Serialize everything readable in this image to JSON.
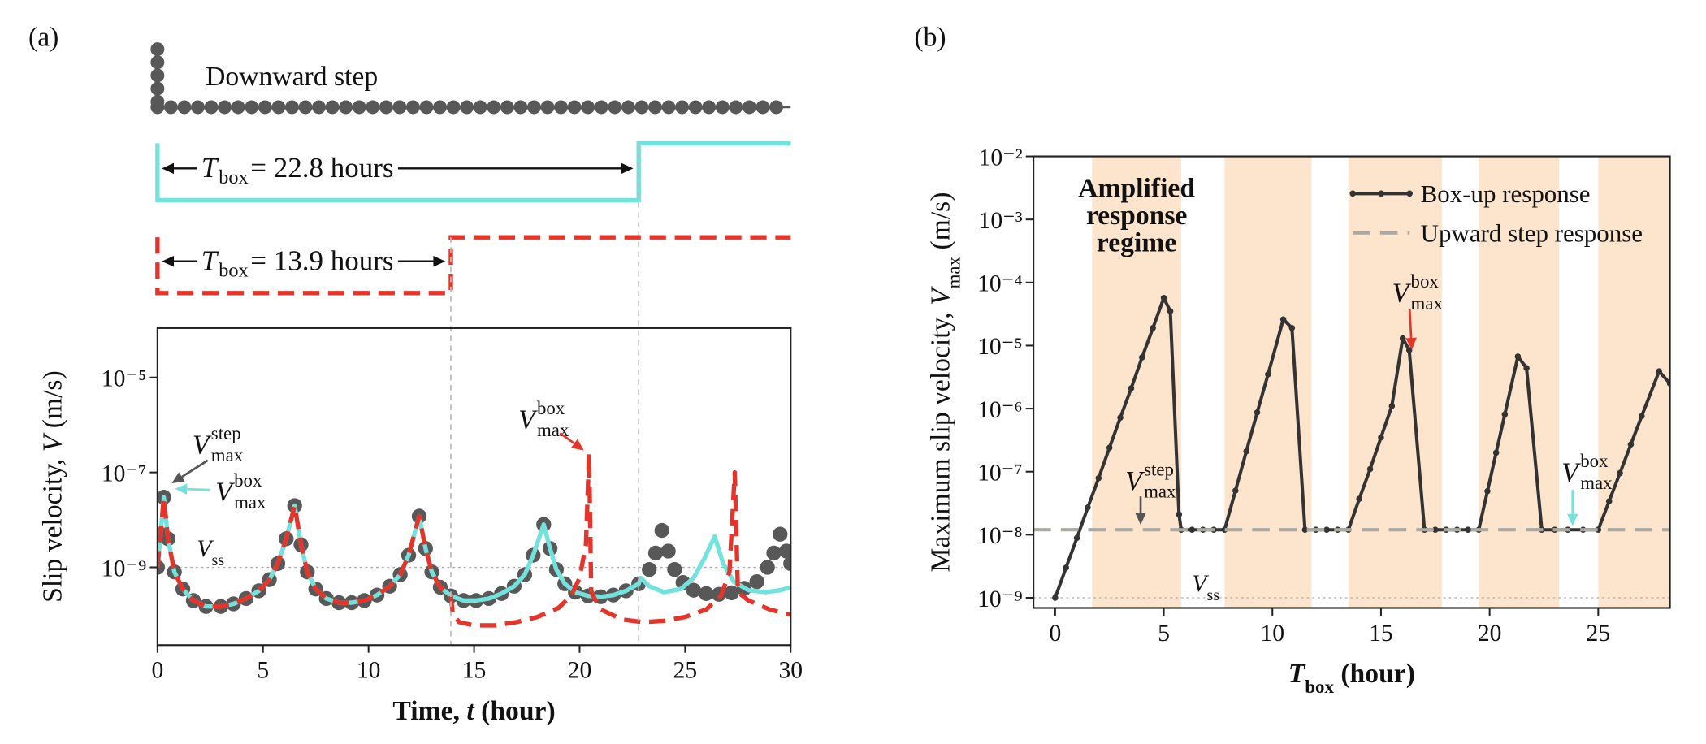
{
  "chart_data": [
    {
      "type": "line",
      "panel": "(a)",
      "xlabel": [
        "Time, ",
        "t",
        " (hour)"
      ],
      "ylabel": [
        "Slip velocity, ",
        "V",
        " (m/s)"
      ],
      "xlim": [
        0,
        30
      ],
      "xticks": [
        0,
        5,
        10,
        15,
        20,
        25,
        30
      ],
      "ylim": [
        2.3e-11,
        0.00011
      ],
      "log_y": true,
      "yticks": [
        {
          "value": 1e-09,
          "label": "10⁻⁹"
        },
        {
          "value": 1e-07,
          "label": "10⁻⁷"
        },
        {
          "value": 1e-05,
          "label": "10⁻⁵"
        }
      ],
      "reference": {
        "value": 1e-09,
        "label": [
          "V",
          "ss"
        ]
      },
      "schematic": {
        "step_label": "Downward step"
      },
      "series": [
        {
          "color": "#585858",
          "marker": "circle",
          "x": [
            0,
            0.15,
            0.3,
            0.5,
            0.8,
            1.2,
            1.7,
            2.3,
            3,
            3.6,
            4.2,
            4.8,
            5.3,
            5.7,
            6.1,
            6.5,
            6.8,
            7.1,
            7.5,
            8,
            8.6,
            9.2,
            9.8,
            10.4,
            11,
            11.5,
            11.9,
            12.4,
            12.7,
            13,
            13.4,
            13.9,
            14.5,
            15.1,
            15.7,
            16.3,
            16.9,
            17.4,
            17.8,
            18.3,
            18.6,
            18.9,
            19.3,
            19.8,
            20.4,
            21,
            21.6,
            22.2,
            22.8,
            23.3,
            23.6,
            23.9,
            24.2,
            24.5,
            24.9,
            25.4,
            26,
            26.6,
            27.2,
            27.8,
            28.4,
            28.9,
            29.2,
            29.5,
            29.8,
            30
          ],
          "values": [
            1e-09,
            5e-09,
            3e-08,
            4e-09,
            8e-10,
            3.5e-10,
            2e-10,
            1.5e-10,
            1.5e-10,
            1.7e-10,
            2.2e-10,
            3.2e-10,
            5.5e-10,
            1.2e-09,
            4e-09,
            2e-08,
            3e-09,
            8e-10,
            3.5e-10,
            2.2e-10,
            1.8e-10,
            1.8e-10,
            2e-10,
            2.6e-10,
            4e-10,
            7e-10,
            1.8e-09,
            1.2e-08,
            2.5e-09,
            8e-10,
            3.8e-10,
            2.5e-10,
            2e-10,
            2e-10,
            2.2e-10,
            2.8e-10,
            4e-10,
            7e-10,
            1.8e-09,
            8e-09,
            2.5e-09,
            9e-10,
            4.5e-10,
            3e-10,
            2.5e-10,
            2.4e-10,
            2.6e-10,
            3.2e-10,
            4.5e-10,
            9e-10,
            2e-09,
            6e-09,
            2.2e-09,
            9e-10,
            4.8e-10,
            3.3e-10,
            2.8e-10,
            2.7e-10,
            2.9e-10,
            3.6e-10,
            5e-10,
            1e-09,
            2e-09,
            5e-09,
            2.2e-09,
            1.2e-09
          ]
        },
        {
          "color": "#74e2dc",
          "line": "solid",
          "box": {
            "var": "T",
            "sub": "box",
            "value": 22.8,
            "label": "= 22.8 hours"
          },
          "x": [
            0,
            0.15,
            0.3,
            0.5,
            0.8,
            1.2,
            1.7,
            2.3,
            3,
            3.6,
            4.2,
            4.8,
            5.3,
            5.7,
            6.1,
            6.5,
            6.8,
            7.1,
            7.5,
            8,
            8.6,
            9.2,
            9.8,
            10.4,
            11,
            11.5,
            11.9,
            12.4,
            12.7,
            13,
            13.4,
            13.9,
            14.5,
            15.1,
            15.7,
            16.3,
            16.9,
            17.4,
            17.8,
            18.3,
            18.6,
            18.9,
            19.3,
            19.8,
            20.4,
            21,
            21.6,
            22.2,
            22.8,
            22.9,
            23.3,
            24,
            24.8,
            25.4,
            25.9,
            26.4,
            26.8,
            27.3,
            28,
            28.8,
            29.5,
            30
          ],
          "values": [
            1e-09,
            5e-09,
            3e-08,
            4e-09,
            8e-10,
            3.5e-10,
            2e-10,
            1.5e-10,
            1.5e-10,
            1.7e-10,
            2.2e-10,
            3.2e-10,
            5.5e-10,
            1.2e-09,
            4e-09,
            2e-08,
            3e-09,
            8e-10,
            3.5e-10,
            2.2e-10,
            1.8e-10,
            1.8e-10,
            2e-10,
            2.6e-10,
            4e-10,
            7e-10,
            1.8e-09,
            1.2e-08,
            2.5e-09,
            8e-10,
            3.8e-10,
            2.5e-10,
            2e-10,
            2e-10,
            2.2e-10,
            2.8e-10,
            4e-10,
            7e-10,
            1.8e-09,
            8e-09,
            2.5e-09,
            9e-10,
            4.5e-10,
            3e-10,
            2.5e-10,
            2.4e-10,
            2.6e-10,
            3.2e-10,
            4.5e-10,
            6e-10,
            4e-10,
            3e-10,
            3.5e-10,
            6e-10,
            1.5e-09,
            4.5e-09,
            1.2e-09,
            5e-10,
            3.3e-10,
            3e-10,
            3.3e-10,
            3.8e-10
          ]
        },
        {
          "color": "#e5352a",
          "line": "dashed",
          "box": {
            "var": "T",
            "sub": "box",
            "value": 13.9,
            "label": "= 13.9 hours"
          },
          "x": [
            0,
            0.15,
            0.3,
            0.5,
            0.8,
            1.2,
            1.7,
            2.3,
            3,
            3.6,
            4.2,
            4.8,
            5.3,
            5.7,
            6.1,
            6.5,
            6.8,
            7.1,
            7.5,
            8,
            8.6,
            9.2,
            9.8,
            10.4,
            11,
            11.5,
            11.9,
            12.4,
            12.7,
            13,
            13.4,
            13.9,
            14,
            14.3,
            15,
            16,
            17,
            18,
            19,
            19.6,
            20,
            20.3,
            20.45,
            20.55,
            21,
            22,
            23,
            24,
            25,
            26,
            26.7,
            27.1,
            27.35,
            27.5,
            28,
            29,
            30
          ],
          "values": [
            1e-09,
            5e-09,
            3e-08,
            4e-09,
            8e-10,
            3.5e-10,
            2e-10,
            1.5e-10,
            1.5e-10,
            1.7e-10,
            2.2e-10,
            3.2e-10,
            5.5e-10,
            1.2e-09,
            4e-09,
            2e-08,
            3e-09,
            8e-10,
            3.5e-10,
            2.2e-10,
            1.8e-10,
            1.8e-10,
            2e-10,
            2.6e-10,
            4e-10,
            7e-10,
            1.8e-09,
            1.2e-08,
            2.5e-09,
            8e-10,
            3.8e-10,
            2.5e-10,
            1e-10,
            7e-11,
            6e-11,
            6e-11,
            7e-11,
            9e-11,
            1.4e-10,
            2.5e-10,
            6e-10,
            3e-09,
            2.5e-07,
            3e-10,
            1.3e-10,
            8e-11,
            7e-11,
            7.5e-11,
            9e-11,
            1.3e-10,
            2.5e-10,
            8e-10,
            1e-07,
            3e-10,
            2e-10,
            1.3e-10,
            1e-10
          ]
        }
      ],
      "annotations": [
        {
          "parts": [
            "V",
            "max",
            "step"
          ],
          "color": "#555555"
        },
        {
          "parts": [
            "V",
            "max",
            "box"
          ],
          "color": "#74e2dc"
        },
        {
          "parts": [
            "V",
            "max",
            "box"
          ],
          "color": "#e5352a"
        }
      ]
    },
    {
      "type": "line",
      "panel": "(b)",
      "xlabel": [
        "T",
        "box",
        " (hour)"
      ],
      "ylabel": [
        "Maximum slip velocity, ",
        "V",
        "max",
        " (m/s)"
      ],
      "xlim": [
        -1,
        28.3
      ],
      "xticks": [
        0,
        5,
        10,
        15,
        20,
        25
      ],
      "ylim": [
        6.9e-10,
        0.01
      ],
      "log_y": true,
      "yticks": [
        {
          "value": 1e-09,
          "label": "10⁻⁹"
        },
        {
          "value": 1e-08,
          "label": "10⁻⁸"
        },
        {
          "value": 1e-07,
          "label": "10⁻⁷"
        },
        {
          "value": 1e-06,
          "label": "10⁻⁶"
        },
        {
          "value": 1e-05,
          "label": "10⁻⁵"
        },
        {
          "value": 0.0001,
          "label": "10⁻⁴"
        },
        {
          "value": 0.001,
          "label": "10⁻³"
        },
        {
          "value": 0.01,
          "label": "10⁻²"
        }
      ],
      "regions": [
        [
          1.7,
          5.8
        ],
        [
          7.8,
          11.8
        ],
        [
          13.5,
          17.8
        ],
        [
          19.5,
          23.2
        ],
        [
          25.0,
          28.3
        ]
      ],
      "region_color": "#fde4cd",
      "region_label": [
        "Amplified",
        "response",
        "regime"
      ],
      "reference": {
        "value": 1e-09,
        "label": [
          "V",
          "ss"
        ]
      },
      "legend": "upper right",
      "series": [
        {
          "name": "Box-up response",
          "color": "#333333",
          "line": "solid",
          "marker": "dot",
          "x": [
            0,
            0.5,
            1,
            1.5,
            2,
            2.5,
            3,
            3.5,
            4,
            4.5,
            5,
            5.3,
            5.7,
            5.8,
            6.3,
            6.8,
            7.3,
            7.8,
            8.3,
            8.8,
            9.3,
            9.8,
            10.5,
            10.9,
            11.5,
            12,
            12.5,
            13,
            13.5,
            14,
            14.5,
            15,
            15.5,
            16,
            16.3,
            17,
            17.5,
            18,
            18.5,
            19,
            19.5,
            19.9,
            20.3,
            20.7,
            21.3,
            21.7,
            22.4,
            23,
            23.6,
            24.3,
            25,
            25.5,
            26,
            26.5,
            27,
            27.8,
            28.3
          ],
          "values": [
            1e-09,
            3e-09,
            8.9e-09,
            2.7e-08,
            7.9e-08,
            2.4e-07,
            7.2e-07,
            2.1e-06,
            6.5e-06,
            1.9e-05,
            5.7e-05,
            3.5e-05,
            2.1e-08,
            1.2e-08,
            1.2e-08,
            1.2e-08,
            1.2e-08,
            1.2e-08,
            5e-08,
            2.1e-07,
            8.7e-07,
            3.5e-06,
            2.6e-05,
            1.9e-05,
            1.2e-08,
            1.2e-08,
            1.2e-08,
            1.2e-08,
            1.2e-08,
            3.7e-08,
            1.1e-07,
            3.5e-07,
            1.1e-06,
            1.3e-05,
            8.5e-06,
            1.2e-08,
            1.2e-08,
            1.2e-08,
            1.2e-08,
            1.2e-08,
            1.2e-08,
            4.9e-08,
            2e-07,
            8.1e-07,
            6.7e-06,
            4.4e-06,
            1.2e-08,
            1.2e-08,
            1.2e-08,
            1.2e-08,
            1.2e-08,
            3.4e-08,
            9.5e-08,
            2.7e-07,
            7.6e-07,
            3.9e-06,
            2.5e-06
          ]
        },
        {
          "name": "Upward step response",
          "color": "#aaaaa2",
          "line": "dashed",
          "value": 1.2e-08
        }
      ],
      "annotations": [
        {
          "parts": [
            "V",
            "max",
            "box"
          ],
          "color": "#e5352a"
        },
        {
          "parts": [
            "V",
            "max",
            "step"
          ],
          "color": "#555555"
        },
        {
          "parts": [
            "V",
            "max",
            "box"
          ],
          "color": "#74e2dc"
        }
      ]
    }
  ]
}
